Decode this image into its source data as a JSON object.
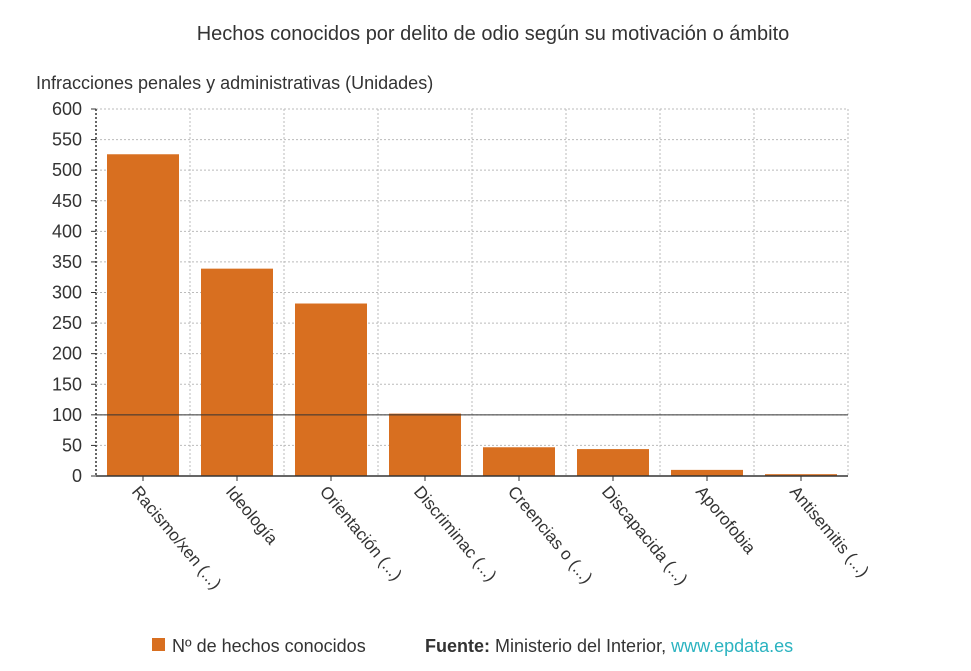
{
  "chart_data": {
    "type": "bar",
    "title": "Hechos conocidos por delito de odio según su motivación o ámbito",
    "ylabel": "Infracciones penales y administrativas (Unidades)",
    "xlabel": "",
    "categories": [
      "Racismo/xen (...)",
      "Ideología",
      "Orientación (...)",
      "Discriminac (...)",
      "Creencias o (...)",
      "Discapacida (...)",
      "Aporofobia",
      "Antisemitis (...)"
    ],
    "series": [
      {
        "name": "Nº de hechos conocidos",
        "values": [
          526,
          339,
          282,
          102,
          47,
          44,
          10,
          3
        ]
      }
    ],
    "ylim": [
      0,
      600
    ],
    "yticks": [
      "0",
      "50",
      "100",
      "150",
      "200",
      "250",
      "300",
      "350",
      "400",
      "450",
      "500",
      "550",
      "600"
    ],
    "reference_line": 100,
    "grid": true,
    "legend_position": "bottom",
    "colors": {
      "bar": "#d86f20",
      "grid": "#bbbbbb",
      "axis": "#333333",
      "link": "#2bb3c0"
    }
  },
  "footer": {
    "source_label": "Fuente:",
    "source_text": "Ministerio del Interior,",
    "source_link": "www.epdata.es"
  }
}
